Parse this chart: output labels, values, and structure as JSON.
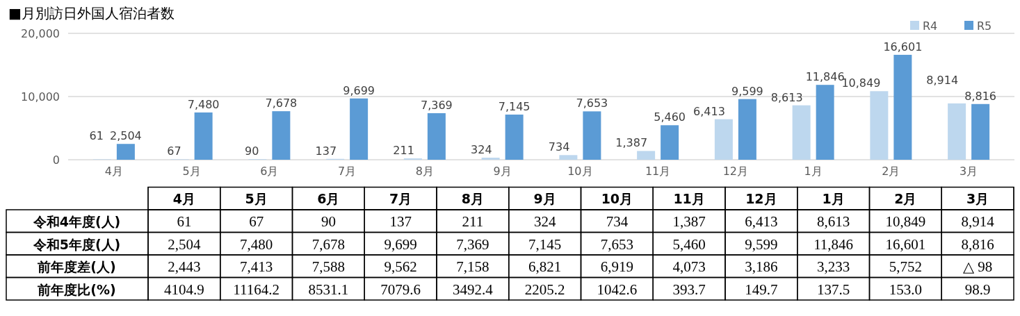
{
  "chart_data": {
    "type": "bar",
    "title": "■月別訪日外国人宿泊者数",
    "categories": [
      "4月",
      "5月",
      "6月",
      "7月",
      "8月",
      "9月",
      "10月",
      "11月",
      "12月",
      "1月",
      "2月",
      "3月"
    ],
    "series": [
      {
        "name": "R4",
        "color": "#bdd7ee",
        "values": [
          61,
          67,
          90,
          137,
          211,
          324,
          734,
          1387,
          6413,
          8613,
          10849,
          8914
        ],
        "value_labels": [
          "61",
          "67",
          "90",
          "137",
          "211",
          "324",
          "734",
          "1,387",
          "6,413",
          "8,613",
          "10,849",
          "8,914"
        ]
      },
      {
        "name": "R5",
        "color": "#5b9bd5",
        "values": [
          2504,
          7480,
          7678,
          9699,
          7369,
          7145,
          7653,
          5460,
          9599,
          11846,
          16601,
          8816
        ],
        "value_labels": [
          "2,504",
          "7,480",
          "7,678",
          "9,699",
          "7,369",
          "7,145",
          "7,653",
          "5,460",
          "9,599",
          "11,846",
          "16,601",
          "8,816"
        ]
      }
    ],
    "ylim": [
      0,
      20000
    ],
    "yticks": [
      {
        "value": 0,
        "label": "0"
      },
      {
        "value": 10000,
        "label": "10,000"
      },
      {
        "value": 20000,
        "label": "20,000"
      }
    ],
    "grid": "y",
    "legend": "top right",
    "annotations": [
      "令和4年度(人)",
      "令和5年度(人)",
      "前年度差(人)",
      "前年度比(%)",
      "2,443",
      "7,413",
      "7,588",
      "9,562",
      "7,158",
      "6,821",
      "6,919",
      "4,073",
      "3,186",
      "3,233",
      "5,752",
      "△ 98",
      "4104.9",
      "11164.2",
      "8531.1",
      "7079.6",
      "3492.4",
      "2205.2",
      "1042.6",
      "393.7",
      "149.7",
      "137.5",
      "153.0",
      "98.9"
    ]
  }
}
